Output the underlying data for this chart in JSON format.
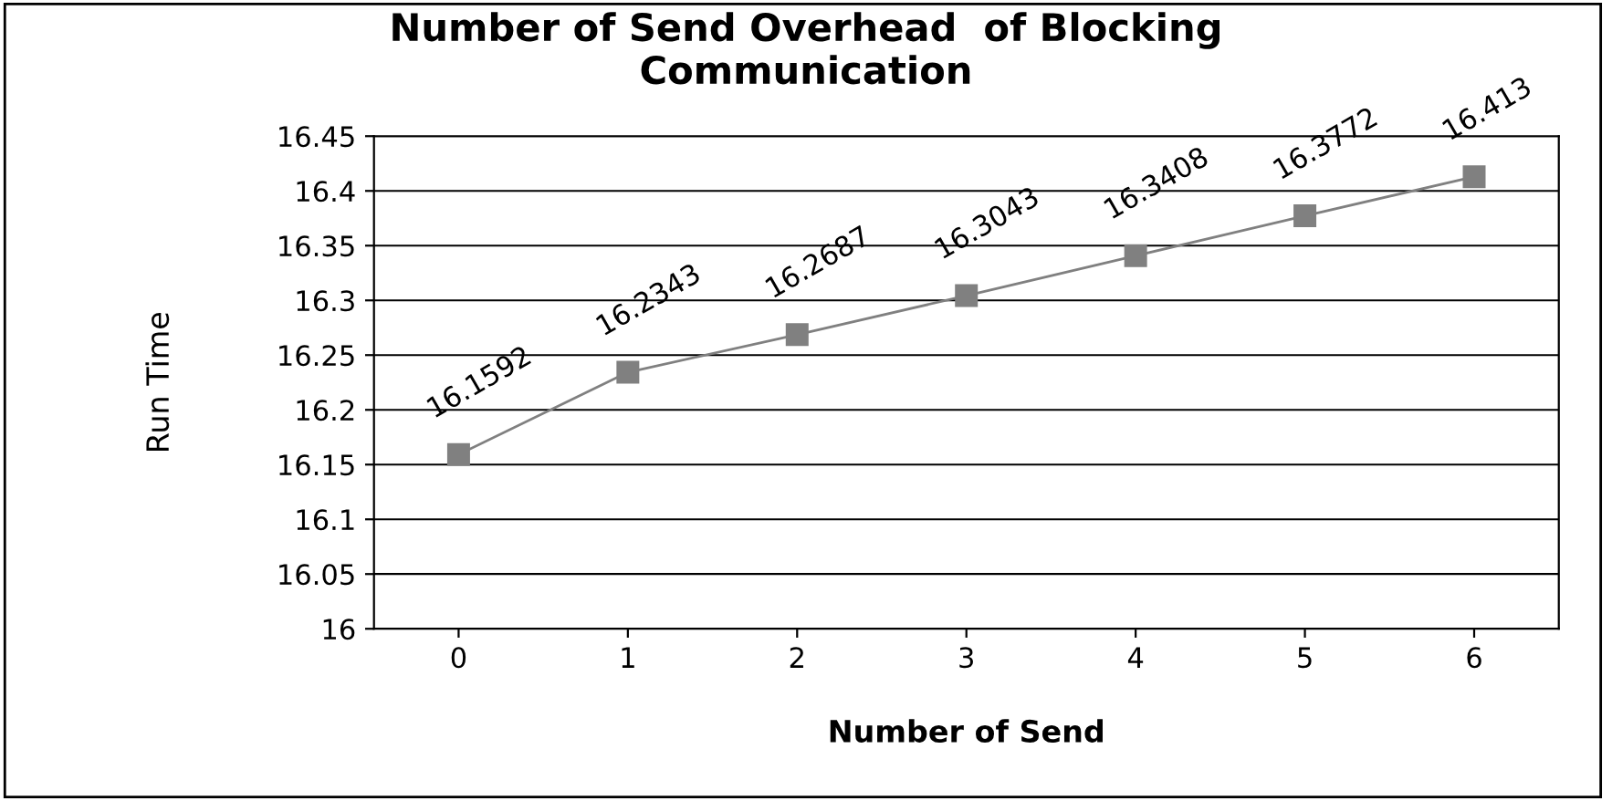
{
  "chart_data": {
    "type": "line",
    "title": "Number of Send Overhead  of Blocking\nCommunication",
    "xlabel": "Number of Send",
    "ylabel": "Run Time",
    "categories": [
      "0",
      "1",
      "2",
      "3",
      "4",
      "5",
      "6"
    ],
    "series": [
      {
        "color": "#808080",
        "values": [
          16.1592,
          16.2343,
          16.2687,
          16.3043,
          16.3408,
          16.3772,
          16.413
        ]
      }
    ],
    "ylim": [
      16,
      16.45
    ],
    "yticks": [
      16,
      16.05,
      16.1,
      16.15,
      16.2,
      16.25,
      16.3,
      16.35,
      16.4,
      16.45
    ],
    "grid": "y",
    "marker": "square",
    "line_style": "solid",
    "data_labels": true,
    "legend": false
  }
}
